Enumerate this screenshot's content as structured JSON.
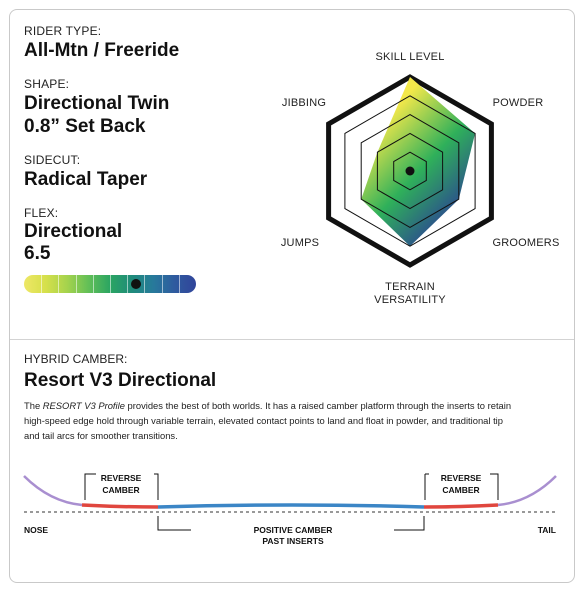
{
  "specs": {
    "rider_type": {
      "label": "RIDER TYPE:",
      "value": "All-Mtn / Freeride"
    },
    "shape": {
      "label": "SHAPE:",
      "value_line1": "Directional Twin",
      "value_line2": "0.8” Set Back"
    },
    "sidecut": {
      "label": "SIDECUT:",
      "value": "Radical Taper"
    },
    "flex": {
      "label": "FLEX:",
      "value_line1": "Directional",
      "value_line2": "6.5",
      "scale_max": 10,
      "segments": 10,
      "level": 6.5
    }
  },
  "radar": {
    "axes": [
      "SKILL LEVEL",
      "POWDER",
      "GROOMERS",
      "TERRAIN VERSATILITY",
      "JUMPS",
      "JIBBING"
    ],
    "axis_label_lines": [
      [
        "SKILL LEVEL"
      ],
      [
        "POWDER"
      ],
      [
        "GROOMERS"
      ],
      [
        "TERRAIN",
        "VERSATILITY"
      ],
      [
        "JUMPS"
      ],
      [
        "JIBBING"
      ]
    ],
    "max": 5,
    "values": [
      5,
      4,
      3,
      4,
      3,
      2
    ],
    "colors": {
      "outer": "#111111",
      "gradient_start": "#f3e84a",
      "gradient_mid": "#2fb05a",
      "gradient_end": "#2b3f95"
    }
  },
  "camber": {
    "label": "HYBRID CAMBER:",
    "title": "Resort V3 Directional",
    "desc_italic": "RESORT V3 Profile",
    "desc_text_line1_prefix": "The ",
    "desc_text_line1_suffix": " provides the best of both worlds. It has a raised camber platform through the inserts to retain",
    "desc_text_line2": "high-speed edge hold through variable terrain, elevated contact points to land and float in powder, and traditional tip",
    "desc_text_line3": "and tail arcs for smoother transitions.",
    "reverse_left": [
      "REVERSE",
      "CAMBER"
    ],
    "reverse_right": [
      "REVERSE",
      "CAMBER"
    ],
    "positive": [
      "POSITIVE CAMBER",
      "PAST INSERTS"
    ],
    "nose": "NOSE",
    "tail": "TAIL",
    "colors": {
      "tip": "#a98fd0",
      "reverse": "#e0463e",
      "camber": "#3b86c6"
    }
  }
}
